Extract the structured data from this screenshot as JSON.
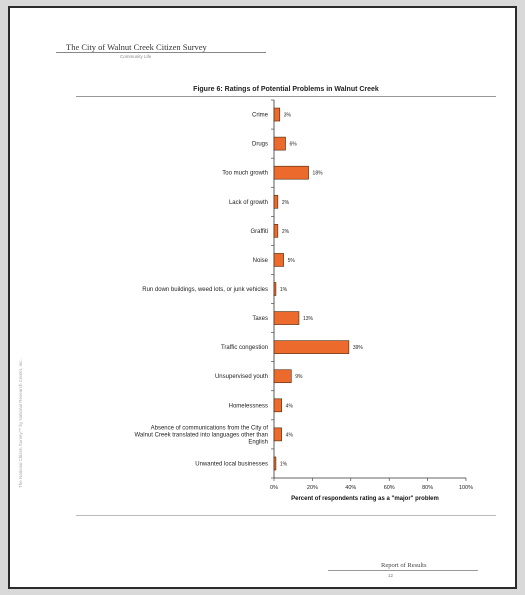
{
  "header": {
    "title": "The City of Walnut Creek Citizen Survey",
    "subtitle": "Community Life"
  },
  "side_text": "The National Citizen Survey™ by National Research Center, Inc.",
  "footer": {
    "title": "Report of Results",
    "page_number": "12"
  },
  "colors": {
    "bar_fill": "#ec6a2c",
    "bar_stroke": "#4a2a10",
    "axis": "#333333"
  },
  "chart_data": {
    "type": "bar",
    "orientation": "horizontal",
    "title": "Figure 6: Ratings of Potential Problems in Walnut Creek",
    "xlabel": "Percent of respondents rating as a \"major\" problem",
    "ylabel": "",
    "xlim": [
      0,
      100
    ],
    "xticks": [
      "0%",
      "20%",
      "40%",
      "60%",
      "80%",
      "100%"
    ],
    "categories": [
      [
        "Crime"
      ],
      [
        "Drugs"
      ],
      [
        "Too much growth"
      ],
      [
        "Lack of growth"
      ],
      [
        "Graffiti"
      ],
      [
        "Noise"
      ],
      [
        "Run down buildings, weed lots, or junk vehicles"
      ],
      [
        "Taxes"
      ],
      [
        "Traffic congestion"
      ],
      [
        "Unsupervised youth"
      ],
      [
        "Homelessness"
      ],
      [
        "Absence of communications from the City of",
        "Walnut Creek translated into languages other than",
        "English"
      ],
      [
        "Unwanted local businesses"
      ]
    ],
    "values": [
      3,
      6,
      18,
      2,
      2,
      5,
      1,
      13,
      39,
      9,
      4,
      4,
      1
    ],
    "value_labels": [
      "3%",
      "6%",
      "18%",
      "2%",
      "2%",
      "5%",
      "1%",
      "13%",
      "39%",
      "9%",
      "4%",
      "4%",
      "1%"
    ]
  }
}
